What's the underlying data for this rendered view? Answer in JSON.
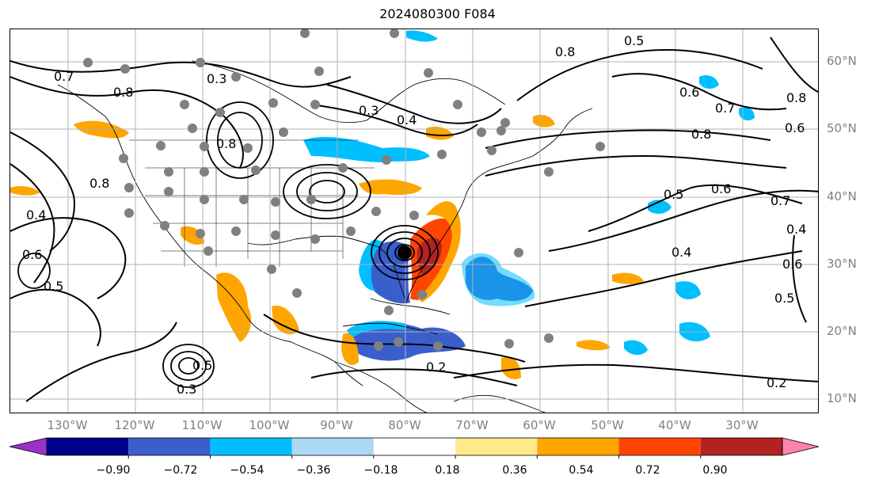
{
  "title": "2024080300 F084",
  "lon_labels": [
    "130°W",
    "120°W",
    "110°W",
    "100°W",
    "90°W",
    "80°W",
    "70°W",
    "60°W",
    "50°W",
    "40°W",
    "30°W"
  ],
  "lat_labels": [
    "60°N",
    "50°N",
    "40°N",
    "30°N",
    "20°N",
    "10°N"
  ],
  "colorbar": {
    "ticks": [
      "−0.90",
      "−0.72",
      "−0.54",
      "−0.36",
      "−0.18",
      "0.18",
      "0.36",
      "0.54",
      "0.72",
      "0.90"
    ],
    "colors": [
      "#9932cc",
      "#00008b",
      "#3a5fcd",
      "#00bfff",
      "#add8f6",
      "#ffffff",
      "#ffe98a",
      "#ffa500",
      "#ff4500",
      "#b22222",
      "#ff82ab"
    ]
  },
  "contour_labels": [
    "0.8",
    "0.7",
    "0.3",
    "0.8",
    "0.8",
    "0.3",
    "0.4",
    "0.5",
    "0.6",
    "0.7",
    "0.8",
    "0.8",
    "0.6",
    "0.5",
    "0.6",
    "0.7",
    "0.4",
    "0.4",
    "0.6",
    "0.5",
    "0.4",
    "0.6",
    "0.5",
    "0.2",
    "0.2",
    "0.3",
    "0.5",
    "0.8"
  ]
}
